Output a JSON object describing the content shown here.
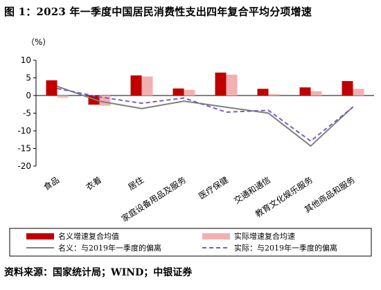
{
  "title": "图 1：2023 年一季度中国居民消费性支出四年复合平均分项增速",
  "unit_label": "（%）",
  "source": "资料来源：国家统计局；WIND；中银证券",
  "colors": {
    "nominal_bar": "#c00000",
    "real_bar": "#f2b0b0",
    "nominal_line": "#7f7f7f",
    "real_line": "#7a5cc6"
  },
  "chart_data": {
    "type": "bar",
    "categories": [
      "食品",
      "衣着",
      "居住",
      "家庭设备用品及服务",
      "医疗保健",
      "交通和通信",
      "教育文化娱乐服务",
      "其他商品和服务"
    ],
    "ylim": [
      -20,
      10
    ],
    "yticks": [
      10,
      5,
      0,
      -5,
      -10,
      -15,
      -20
    ],
    "grid": false,
    "legend_position": "bottom",
    "series": [
      {
        "name": "名义增速复合均值",
        "kind": "bar",
        "values": [
          4.3,
          -2.6,
          5.7,
          2.0,
          6.5,
          1.9,
          2.3,
          4.1
        ]
      },
      {
        "name": "实际增速复合均速",
        "kind": "bar",
        "values": [
          -0.6,
          -2.9,
          5.4,
          1.6,
          5.9,
          0.4,
          1.2,
          1.9
        ]
      },
      {
        "name": "名义：与2019年一季度的偏离",
        "kind": "line",
        "values": [
          2.6,
          -1.6,
          -3.7,
          -1.6,
          -3.3,
          -5.0,
          -14.3,
          -3.2
        ]
      },
      {
        "name": "实际：与2019年一季度的偏离",
        "kind": "line-dashed",
        "values": [
          2.0,
          -0.4,
          -2.2,
          -0.7,
          -4.7,
          -4.2,
          -12.9,
          -3.3
        ]
      }
    ]
  }
}
